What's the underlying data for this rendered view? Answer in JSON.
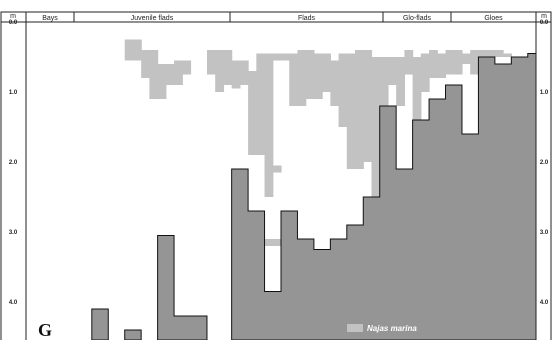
{
  "chart_data": {
    "type": "area",
    "panel_label": "G",
    "unit_label": "m",
    "y_axis": {
      "direction": "depth increases downward",
      "ylim": [
        0,
        4.5
      ],
      "ticks": [
        {
          "value": 0,
          "label": "0.0"
        },
        {
          "value": 1,
          "label": "1.0"
        },
        {
          "value": 2,
          "label": "2.0"
        },
        {
          "value": 3,
          "label": "3.0"
        },
        {
          "value": 4,
          "label": "4.0"
        }
      ]
    },
    "zones": [
      "Bays",
      "Juvenile flads",
      "Flads",
      "Glo-flads",
      "Gloes"
    ],
    "x_columns": 62,
    "series": [
      {
        "name": "Sediment depth",
        "color": "#959595",
        "note": "Depth (m) of the sediment surface per column along the transect; null = below the lower edge of the figure",
        "values": [
          null,
          null,
          null,
          null,
          null,
          null,
          null,
          null,
          4.1,
          4.1,
          null,
          null,
          4.4,
          4.4,
          null,
          null,
          3.05,
          3.05,
          4.2,
          4.2,
          4.2,
          4.2,
          null,
          null,
          null,
          2.1,
          2.1,
          2.7,
          2.7,
          3.85,
          3.85,
          2.7,
          2.7,
          3.1,
          3.1,
          3.25,
          3.25,
          3.1,
          3.1,
          2.9,
          2.9,
          2.5,
          2.5,
          1.2,
          1.2,
          2.1,
          2.1,
          1.4,
          1.4,
          1.1,
          1.1,
          0.9,
          0.9,
          1.6,
          1.6,
          0.5,
          0.5,
          0.6,
          0.6,
          0.5,
          0.5,
          0.45
        ]
      },
      {
        "name": "Najas marina",
        "color": "#c2c2c2",
        "note": "Vertical extent (m) of Najas marina per column: [top, bottom]; null = absent",
        "ranges": [
          null,
          null,
          null,
          null,
          null,
          null,
          null,
          null,
          null,
          null,
          null,
          null,
          [
            0.25,
            0.55
          ],
          [
            0.25,
            0.55
          ],
          [
            0.4,
            0.8
          ],
          [
            0.4,
            1.1
          ],
          [
            0.6,
            1.1
          ],
          [
            0.6,
            0.9
          ],
          [
            0.55,
            0.9
          ],
          [
            0.55,
            0.75
          ],
          null,
          null,
          [
            0.4,
            0.75
          ],
          [
            0.4,
            1.0
          ],
          [
            0.4,
            0.9
          ],
          [
            0.55,
            0.95
          ],
          [
            0.55,
            0.9
          ],
          [
            0.7,
            1.9
          ],
          [
            0.45,
            1.9
          ],
          [
            0.45,
            2.5
          ],
          [
            0.45,
            0.55
          ],
          [
            0.45,
            0.55
          ],
          [
            0.45,
            1.2
          ],
          [
            0.4,
            1.2
          ],
          [
            0.4,
            1.1
          ],
          [
            0.45,
            1.1
          ],
          [
            0.45,
            1.0
          ],
          [
            0.55,
            1.2
          ],
          [
            0.45,
            1.5
          ],
          [
            0.45,
            2.1
          ],
          [
            0.4,
            2.1
          ],
          [
            0.4,
            2.0
          ],
          [
            0.5,
            2.5
          ],
          [
            0.5,
            2.5
          ],
          [
            0.5,
            0.9
          ],
          [
            0.5,
            1.2
          ],
          [
            0.4,
            0.75
          ],
          [
            0.5,
            1.4
          ],
          [
            0.45,
            1.0
          ],
          [
            0.4,
            0.8
          ],
          [
            0.45,
            0.8
          ],
          [
            0.4,
            0.75
          ],
          [
            0.4,
            0.75
          ],
          [
            0.45,
            0.6
          ],
          [
            0.4,
            0.75
          ],
          [
            0.4,
            0.75
          ],
          [
            0.4,
            0.5
          ],
          [
            0.4,
            0.5
          ],
          [
            0.45,
            0.5
          ],
          null,
          null,
          null
        ]
      }
    ],
    "annotations": {
      "patches": [
        {
          "column": 29,
          "top": 2.05,
          "bottom": 2.15,
          "color": "#c2c2c2"
        },
        {
          "column": 30,
          "top": 2.05,
          "bottom": 2.15,
          "color": "#c2c2c2"
        },
        {
          "column": 29,
          "top": 3.1,
          "bottom": 3.2,
          "color": "#c2c2c2"
        },
        {
          "column": 30,
          "top": 3.1,
          "bottom": 3.2,
          "color": "#c2c2c2"
        }
      ]
    },
    "legend": [
      {
        "name": "Najas marina",
        "color": "#c2c2c2",
        "placement": "bottom-right"
      }
    ]
  }
}
